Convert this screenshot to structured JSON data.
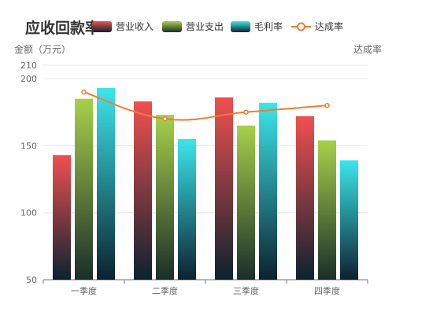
{
  "chart_data": {
    "type": "bar",
    "title": "应收回款率",
    "categories": [
      "一季度",
      "二季度",
      "三季度",
      "四季度"
    ],
    "ylabel": "金额（万元）",
    "y2label": "达成率",
    "ylim": [
      50,
      210
    ],
    "yticks": [
      50,
      100,
      150,
      200,
      210
    ],
    "legend": [
      "营业收入",
      "营业支出",
      "毛利率",
      "达成率"
    ],
    "legend_position": "top",
    "grid": true,
    "series": [
      {
        "name": "营业收入",
        "type": "bar",
        "values": [
          143,
          183,
          186,
          172
        ],
        "gradient": [
          "#f05050",
          "#0c2230"
        ]
      },
      {
        "name": "营业支出",
        "type": "bar",
        "values": [
          185,
          173,
          165,
          154
        ],
        "gradient": [
          "#a8d04a",
          "#1a2e2a"
        ]
      },
      {
        "name": "毛利率",
        "type": "bar",
        "values": [
          193,
          155,
          182,
          139
        ],
        "gradient": [
          "#3ce6ea",
          "#0c2230"
        ]
      },
      {
        "name": "达成率",
        "type": "line",
        "values": [
          190,
          170,
          175,
          180
        ],
        "color": "#ed7d31"
      }
    ]
  }
}
